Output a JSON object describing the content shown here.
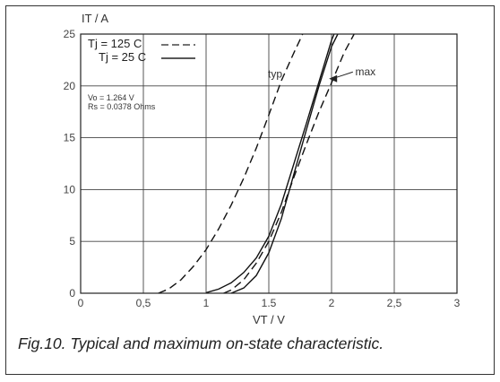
{
  "chart_data": {
    "type": "line",
    "title": "",
    "xlabel": "VT / V",
    "ylabel": "IT / A",
    "xlim": [
      0,
      3
    ],
    "ylim": [
      0,
      25
    ],
    "xticks": [
      0,
      0.5,
      1,
      1.5,
      2,
      2.5,
      3
    ],
    "xtick_labels": [
      "0",
      "0,5",
      "1",
      "1.5",
      "2",
      "2,5",
      "3"
    ],
    "yticks": [
      0,
      5,
      10,
      15,
      20,
      25
    ],
    "ytick_labels": [
      "0",
      "5",
      "10",
      "15",
      "20",
      "25"
    ],
    "grid": true,
    "legend_position": "top-left",
    "legend": [
      {
        "label": "Tj = 125 C",
        "style": "dashed"
      },
      {
        "label": "Tj = 25 C",
        "style": "solid"
      }
    ],
    "params": [
      "Vo = 1.264 V",
      "Rs = 0.0378 Ohms"
    ],
    "annotations": [
      {
        "text": "typ",
        "x": 1.55,
        "y": 20.8
      },
      {
        "text": "max",
        "x": 2.27,
        "y": 21.0,
        "arrow_to": [
          1.98,
          20.7
        ]
      }
    ],
    "series": [
      {
        "style": "dashed",
        "points": [
          [
            0.62,
            0
          ],
          [
            0.7,
            0.4
          ],
          [
            0.8,
            1.3
          ],
          [
            0.9,
            2.6
          ],
          [
            1.0,
            4.2
          ],
          [
            1.1,
            6.2
          ],
          [
            1.2,
            8.5
          ],
          [
            1.3,
            11.1
          ],
          [
            1.4,
            14.0
          ],
          [
            1.5,
            17.2
          ],
          [
            1.6,
            20.5
          ],
          [
            1.7,
            23.2
          ],
          [
            1.77,
            25
          ]
        ]
      },
      {
        "style": "solid",
        "points": [
          [
            1.0,
            0.05
          ],
          [
            1.1,
            0.4
          ],
          [
            1.2,
            1.0
          ],
          [
            1.3,
            2.0
          ],
          [
            1.4,
            3.4
          ],
          [
            1.5,
            5.5
          ],
          [
            1.6,
            8.6
          ],
          [
            1.7,
            12.5
          ],
          [
            1.8,
            16.4
          ],
          [
            1.9,
            20.4
          ],
          [
            2.0,
            24.4
          ],
          [
            2.02,
            25
          ]
        ]
      },
      {
        "style": "dashed",
        "points": [
          [
            1.14,
            0
          ],
          [
            1.2,
            0.3
          ],
          [
            1.3,
            1.3
          ],
          [
            1.4,
            2.9
          ],
          [
            1.5,
            5.0
          ],
          [
            1.6,
            7.8
          ],
          [
            1.7,
            11.2
          ],
          [
            1.8,
            14.4
          ],
          [
            1.9,
            17.5
          ],
          [
            2.0,
            20.3
          ],
          [
            2.1,
            23.2
          ],
          [
            2.18,
            25
          ]
        ]
      },
      {
        "style": "solid",
        "points": [
          [
            1.2,
            0
          ],
          [
            1.3,
            0.5
          ],
          [
            1.4,
            1.7
          ],
          [
            1.5,
            3.9
          ],
          [
            1.6,
            7.2
          ],
          [
            1.7,
            11.5
          ],
          [
            1.8,
            15.8
          ],
          [
            1.9,
            20.0
          ],
          [
            2.0,
            23.8
          ],
          [
            2.05,
            25
          ]
        ]
      }
    ]
  },
  "caption": "Fig.10.  Typical and maximum on-state characteristic."
}
